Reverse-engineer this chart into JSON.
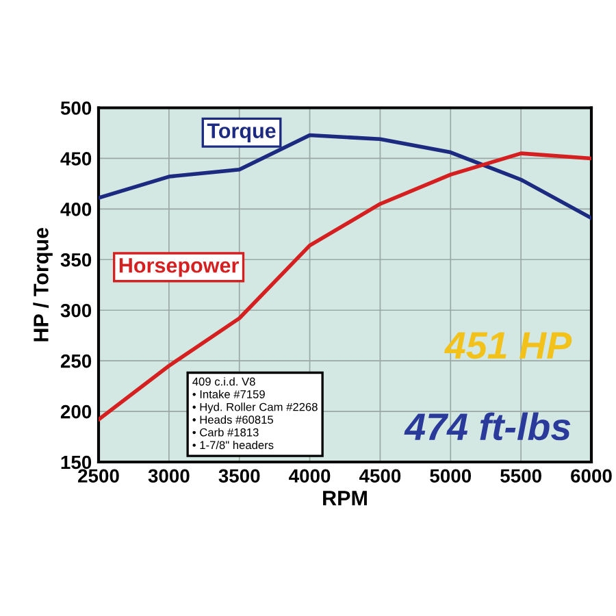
{
  "chart_data": {
    "type": "line",
    "xlabel": "RPM",
    "ylabel": "HP / Torque",
    "x": [
      2500,
      3000,
      3500,
      4000,
      4500,
      5000,
      5500,
      6000
    ],
    "series": [
      {
        "name": "Torque",
        "color": "#1c2a80",
        "values": [
          411,
          432,
          439,
          473,
          469,
          456,
          429,
          391
        ]
      },
      {
        "name": "Horsepower",
        "color": "#d42020",
        "values": [
          192,
          245,
          292,
          364,
          405,
          434,
          455,
          450
        ]
      }
    ],
    "xlim": [
      2500,
      6000
    ],
    "xticks": [
      2500,
      3000,
      3500,
      4000,
      4500,
      5000,
      5500,
      6000
    ],
    "ylim": [
      150,
      500
    ],
    "yticks": [
      150,
      200,
      250,
      300,
      350,
      400,
      450,
      500
    ],
    "grid": true,
    "marker": "none",
    "line_style": "solid",
    "annotations": [
      "409 c.i.d. V8",
      "• Intake #7159",
      "• Hyd. Roller Cam #2268",
      "• Heads #60815",
      "• Carb #1813",
      "• 1-7/8\" headers",
      "451 HP",
      "474 ft-lbs"
    ]
  }
}
